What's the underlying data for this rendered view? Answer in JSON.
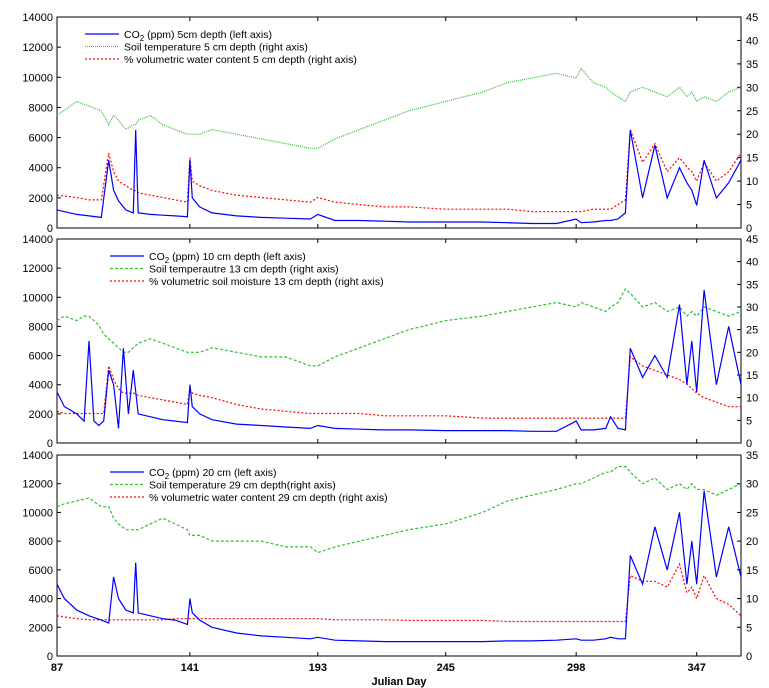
{
  "chart_data": [
    {
      "type": "line",
      "x": [
        87,
        95,
        100,
        105,
        108,
        110,
        112,
        115,
        118,
        119,
        120,
        125,
        130,
        135,
        140,
        141,
        142,
        145,
        150,
        160,
        170,
        180,
        190,
        193,
        200,
        210,
        220,
        230,
        245,
        260,
        270,
        280,
        290,
        298,
        300,
        305,
        310,
        312,
        315,
        318,
        320,
        325,
        330,
        335,
        340,
        343,
        345,
        347,
        350,
        355,
        360,
        365
      ],
      "xlim": [
        87,
        365
      ],
      "ylim_left": [
        0,
        14000
      ],
      "ylim_right": [
        0,
        45
      ],
      "yticks_left": [
        "0",
        "2000",
        "4000",
        "6000",
        "8000",
        "10000",
        "12000",
        "14000"
      ],
      "yticks_right": [
        "0",
        "5",
        "10",
        "15",
        "20",
        "25",
        "30",
        "35",
        "40",
        "45"
      ],
      "series": [
        {
          "name": "CO₂ (ppm) 5cm depth (left axis)",
          "color": "#0000ff",
          "dash": "",
          "axis": "left",
          "values": [
            1200,
            900,
            800,
            700,
            4500,
            2500,
            1800,
            1200,
            1000,
            6500,
            1000,
            900,
            850,
            800,
            750,
            4500,
            2000,
            1400,
            1000,
            800,
            700,
            650,
            600,
            900,
            500,
            500,
            450,
            400,
            400,
            400,
            350,
            300,
            300,
            600,
            350,
            400,
            500,
            500,
            600,
            1000,
            6500,
            2000,
            5500,
            2000,
            4000,
            3000,
            2500,
            1500,
            4500,
            2000,
            3000,
            4500
          ]
        },
        {
          "name": "Soil temperature 5 cm depth (right axis)",
          "color": "#30c030",
          "dash": "1,1",
          "axis": "right",
          "values": [
            24,
            27,
            26,
            25,
            22,
            24,
            23,
            21,
            22,
            22,
            23,
            24,
            22,
            21,
            20,
            20,
            20,
            20,
            21,
            20,
            19,
            18,
            17,
            17,
            19,
            21,
            23,
            25,
            27,
            29,
            31,
            32,
            33,
            32,
            34,
            31,
            30,
            29,
            28,
            27,
            29,
            30,
            29,
            28,
            30,
            28,
            29,
            27,
            28,
            27,
            29,
            30
          ]
        },
        {
          "name": "% volumetric water content 5 cm depth (right axis)",
          "color": "#ff0000",
          "dash": "2,2",
          "axis": "right",
          "values": [
            7,
            6.5,
            6,
            6,
            16,
            12,
            10,
            9,
            8,
            8,
            7.5,
            7,
            6.5,
            6,
            5.5,
            15,
            10,
            9,
            8,
            7,
            6.5,
            6,
            5.5,
            6.5,
            5.5,
            5,
            4.5,
            4.5,
            4,
            4,
            4,
            3.5,
            3.5,
            3.5,
            3.5,
            4,
            4,
            4,
            5,
            6,
            21,
            14,
            18,
            12,
            15,
            13,
            12,
            10,
            14,
            10,
            12,
            16
          ]
        }
      ]
    },
    {
      "type": "line",
      "x": [
        87,
        90,
        95,
        98,
        100,
        102,
        104,
        106,
        108,
        110,
        112,
        114,
        116,
        118,
        120,
        125,
        130,
        135,
        140,
        141,
        142,
        145,
        150,
        160,
        170,
        180,
        190,
        193,
        200,
        210,
        220,
        230,
        245,
        260,
        270,
        280,
        290,
        298,
        300,
        305,
        310,
        312,
        315,
        318,
        320,
        325,
        330,
        335,
        340,
        343,
        345,
        347,
        350,
        355,
        360,
        365
      ],
      "xlim": [
        87,
        365
      ],
      "ylim_left": [
        0,
        14000
      ],
      "ylim_right": [
        0,
        45
      ],
      "yticks_left": [
        "0",
        "2000",
        "4000",
        "6000",
        "8000",
        "10000",
        "12000",
        "14000"
      ],
      "yticks_right": [
        "0",
        "5",
        "10",
        "15",
        "20",
        "25",
        "30",
        "35",
        "40",
        "45"
      ],
      "series": [
        {
          "name": "CO₂ (ppm) 10 cm depth (left axis)",
          "color": "#0000ff",
          "dash": "",
          "axis": "left",
          "values": [
            3500,
            2500,
            2000,
            1500,
            7000,
            1500,
            1200,
            1500,
            5000,
            4000,
            1000,
            6500,
            2000,
            5000,
            2000,
            1800,
            1600,
            1500,
            1400,
            4000,
            2500,
            2000,
            1600,
            1300,
            1200,
            1100,
            1000,
            1200,
            1000,
            950,
            900,
            900,
            850,
            850,
            850,
            800,
            800,
            1500,
            900,
            900,
            1000,
            1800,
            1000,
            900,
            6500,
            4500,
            6000,
            4500,
            9500,
            4000,
            7000,
            3500,
            10500,
            4000,
            8000,
            4000
          ]
        },
        {
          "name": "Soil temperautre 13 cm depth (right axis)",
          "color": "#30c030",
          "dash": "3,2",
          "axis": "right",
          "values": [
            27,
            28,
            27,
            28,
            28,
            27,
            26,
            24,
            23,
            22,
            21,
            20,
            20,
            21,
            22,
            23,
            22,
            21,
            20,
            20,
            20,
            20,
            21,
            20,
            19,
            19,
            17,
            17,
            19,
            21,
            23,
            25,
            27,
            28,
            29,
            30,
            31,
            30,
            31,
            30,
            29,
            30,
            31,
            34,
            33,
            30,
            31,
            29,
            30,
            28,
            29,
            28,
            30,
            29,
            28,
            29
          ]
        },
        {
          "name": "% volumetric soil moisture 13 cm depth (right axis)",
          "color": "#ff0000",
          "dash": "2,2",
          "axis": "right",
          "values": [
            7,
            6.5,
            6.5,
            6.5,
            6.5,
            6.5,
            6.5,
            6.5,
            17,
            14,
            12,
            11,
            11,
            11,
            10.5,
            10,
            9.5,
            9,
            8.5,
            12,
            11,
            10.5,
            10,
            8.5,
            7.5,
            7,
            6.5,
            6.5,
            6.5,
            6.5,
            6,
            6,
            6,
            5.5,
            5.5,
            5.5,
            5.5,
            5.5,
            5.5,
            5.5,
            5.5,
            5.5,
            5.5,
            5.5,
            19,
            17,
            16,
            15,
            14,
            13,
            12,
            11,
            10,
            9,
            8,
            8
          ]
        }
      ]
    },
    {
      "type": "line",
      "x": [
        87,
        90,
        95,
        100,
        105,
        108,
        110,
        112,
        115,
        118,
        119,
        120,
        125,
        130,
        135,
        140,
        141,
        142,
        145,
        150,
        160,
        170,
        180,
        190,
        193,
        200,
        210,
        220,
        230,
        245,
        260,
        270,
        280,
        290,
        298,
        300,
        305,
        310,
        312,
        315,
        318,
        320,
        325,
        330,
        335,
        340,
        343,
        345,
        347,
        350,
        355,
        360,
        365
      ],
      "xlim": [
        87,
        365
      ],
      "ylim_left": [
        0,
        14000
      ],
      "ylim_right": [
        0,
        35
      ],
      "yticks_left": [
        "0",
        "2000",
        "4000",
        "6000",
        "8000",
        "10000",
        "12000",
        "14000"
      ],
      "yticks_right": [
        "0",
        "5",
        "10",
        "15",
        "20",
        "25",
        "30",
        "35"
      ],
      "series": [
        {
          "name": "CO₂ (ppm) 20 cm (left axis)",
          "color": "#0000ff",
          "dash": "",
          "axis": "left",
          "values": [
            5000,
            4000,
            3200,
            2800,
            2500,
            2300,
            5500,
            4000,
            3200,
            3000,
            6500,
            3000,
            2800,
            2600,
            2500,
            2200,
            4000,
            3000,
            2500,
            2000,
            1600,
            1400,
            1300,
            1200,
            1300,
            1100,
            1050,
            1000,
            1000,
            1000,
            1000,
            1050,
            1050,
            1100,
            1200,
            1100,
            1100,
            1200,
            1300,
            1200,
            1200,
            7000,
            5000,
            9000,
            6000,
            10000,
            5000,
            8000,
            5000,
            11500,
            5500,
            9000,
            5500
          ]
        },
        {
          "name": "Soil temperature 29 cm depth(right axis)",
          "color": "#30c030",
          "dash": "3,2",
          "axis": "right",
          "values": [
            26,
            26.5,
            27,
            27.5,
            26,
            26,
            24,
            23,
            22,
            22,
            22,
            22,
            23,
            24,
            23,
            22,
            21,
            21,
            21,
            20,
            20,
            20,
            19,
            19,
            18,
            19,
            20,
            21,
            22,
            23,
            25,
            27,
            28,
            29,
            30,
            30,
            31,
            32,
            32,
            33,
            33,
            32,
            30,
            31,
            29,
            30,
            29,
            30,
            29,
            29,
            28,
            29,
            30
          ]
        },
        {
          "name": "% volumetric water content 29 cm depth (right axis)",
          "color": "#ff0000",
          "dash": "2,2",
          "axis": "right",
          "values": [
            7,
            6.8,
            6.5,
            6.3,
            6.3,
            6.3,
            6.3,
            6.3,
            6.3,
            6.3,
            6.3,
            6.3,
            6.3,
            6.3,
            6.5,
            6.5,
            6.5,
            6.5,
            6.5,
            6.5,
            6.5,
            6.5,
            6.5,
            6.5,
            6.5,
            6.3,
            6.3,
            6.3,
            6.2,
            6.2,
            6.2,
            6,
            6,
            6,
            6,
            6,
            6,
            6,
            6,
            6,
            6,
            14,
            13,
            13,
            12,
            16,
            11,
            12,
            10,
            14,
            10,
            9,
            7
          ]
        }
      ]
    }
  ],
  "x_ticks": [
    "87",
    "141",
    "193",
    "245",
    "298",
    "347"
  ],
  "x_label": "Julian Day",
  "panels": [
    {
      "legend": [
        {
          "pre": "CO",
          "sub": "2",
          "post": " (ppm) 5cm depth (left axis)"
        },
        {
          "pre": "Soil temperature 5 cm depth (right axis)",
          "sub": "",
          "post": ""
        },
        {
          "pre": "% volumetric water content 5 cm depth (right axis)",
          "sub": "",
          "post": ""
        }
      ]
    },
    {
      "legend": [
        {
          "pre": "CO",
          "sub": "2",
          "post": " (ppm) 10 cm depth (left axis)"
        },
        {
          "pre": "Soil temperautre 13 cm depth (right axis)",
          "sub": "",
          "post": ""
        },
        {
          "pre": "% volumetric soil moisture 13 cm depth (right axis)",
          "sub": "",
          "post": ""
        }
      ]
    },
    {
      "legend": [
        {
          "pre": "CO",
          "sub": "2",
          "post": " (ppm) 20 cm (left axis)"
        },
        {
          "pre": "Soil temperature 29 cm depth(right axis)",
          "sub": "",
          "post": ""
        },
        {
          "pre": "% volumetric water content 29 cm depth (right axis)",
          "sub": "",
          "post": ""
        }
      ]
    }
  ]
}
